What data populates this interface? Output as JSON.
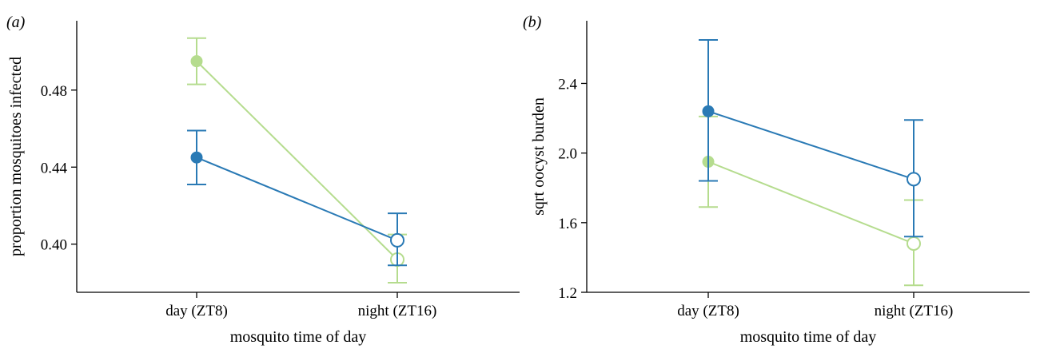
{
  "chart_data": [
    {
      "type": "line",
      "panel_label": "(a)",
      "xlabel": "mosquito time of day",
      "ylabel": "proportion mosquitoes infected",
      "categories": [
        "day (ZT8)",
        "night (ZT16)"
      ],
      "ylim": [
        0.375,
        0.516
      ],
      "yticks": [
        0.4,
        0.44,
        0.48
      ],
      "ytick_labels": [
        "0.40",
        "0.44",
        "0.48"
      ],
      "grid": false,
      "series": [
        {
          "color": "#b5dc8e",
          "values": [
            0.495,
            0.392
          ],
          "error_low": [
            0.483,
            0.38
          ],
          "error_high": [
            0.507,
            0.405
          ],
          "markers": [
            "filled",
            "open"
          ]
        },
        {
          "color": "#2a7ab5",
          "values": [
            0.445,
            0.402
          ],
          "error_low": [
            0.431,
            0.389
          ],
          "error_high": [
            0.459,
            0.416
          ],
          "markers": [
            "filled",
            "open"
          ]
        }
      ]
    },
    {
      "type": "line",
      "panel_label": "(b)",
      "xlabel": "mosquito time of day",
      "ylabel": "sqrt oocyst burden",
      "categories": [
        "day (ZT8)",
        "night (ZT16)"
      ],
      "ylim": [
        1.2,
        2.76
      ],
      "yticks": [
        1.2,
        1.6,
        2.0,
        2.4
      ],
      "ytick_labels": [
        "1.2",
        "1.6",
        "2.0",
        "2.4"
      ],
      "grid": false,
      "series": [
        {
          "color": "#b5dc8e",
          "values": [
            1.95,
            1.48
          ],
          "error_low": [
            1.69,
            1.24
          ],
          "error_high": [
            2.21,
            1.73
          ],
          "markers": [
            "filled",
            "open"
          ]
        },
        {
          "color": "#2a7ab5",
          "values": [
            2.24,
            1.85
          ],
          "error_low": [
            1.84,
            1.52
          ],
          "error_high": [
            2.65,
            2.19
          ],
          "markers": [
            "filled",
            "open"
          ]
        }
      ]
    }
  ]
}
